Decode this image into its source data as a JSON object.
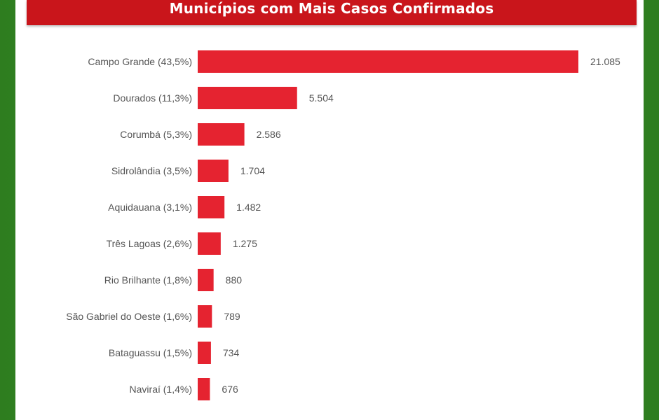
{
  "header": {
    "title": "Municípios com Mais Casos Confirmados"
  },
  "colors": {
    "bar": "#e52330",
    "header": "#c9151b",
    "frame": "#2e7d1f"
  },
  "chart_data": {
    "type": "bar",
    "orientation": "horizontal",
    "title": "Municípios com Mais Casos Confirmados",
    "categories": [
      "Campo Grande (43,5%)",
      "Dourados (11,3%)",
      "Corumbá (5,3%)",
      "Sidrolândia (3,5%)",
      "Aquidauana (3,1%)",
      "Três Lagoas (2,6%)",
      "Rio Brilhante (1,8%)",
      "São Gabriel do Oeste (1,6%)",
      "Bataguassu (1,5%)",
      "Naviraí (1,4%)"
    ],
    "values": [
      21085,
      5504,
      2586,
      1704,
      1482,
      1275,
      880,
      789,
      734,
      676
    ],
    "value_labels": [
      "21.085",
      "5.504",
      "2.586",
      "1.704",
      "1.482",
      "1.275",
      "880",
      "789",
      "734",
      "676"
    ],
    "xlim": [
      0,
      21085
    ],
    "grid": false,
    "legend": "none"
  }
}
